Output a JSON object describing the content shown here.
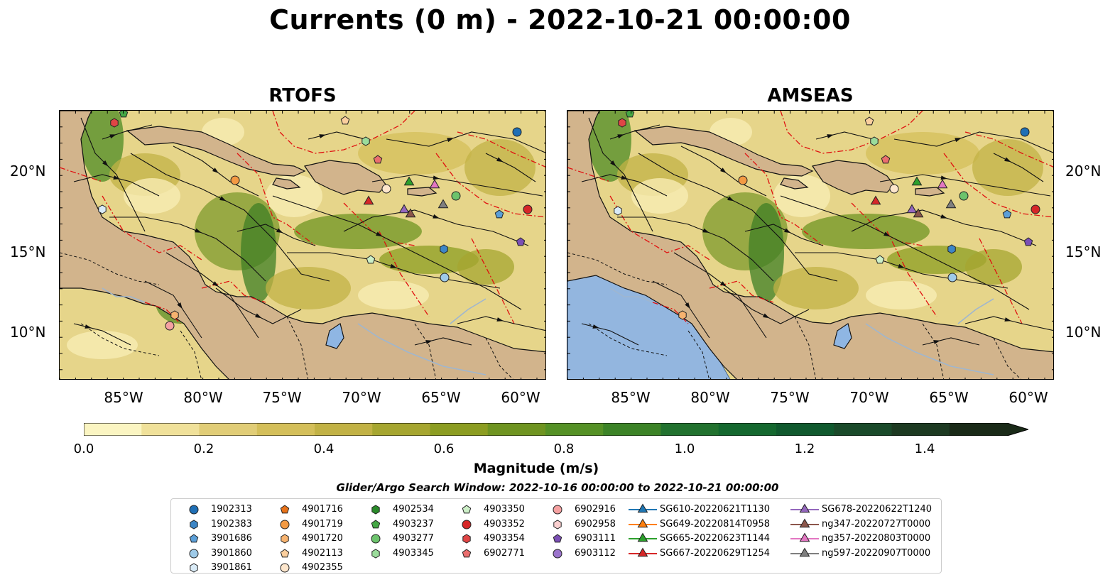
{
  "title": "Currents (0 m) - 2022-10-21 00:00:00",
  "panels": [
    {
      "title": "RTOFS"
    },
    {
      "title": "AMSEAS"
    }
  ],
  "lat_labels": [
    "20°N",
    "15°N",
    "10°N"
  ],
  "lon_labels": [
    "85°W",
    "80°W",
    "75°W",
    "70°W",
    "65°W",
    "60°W"
  ],
  "colorbar": {
    "label": "Magnitude (m/s)",
    "ticks": [
      "0.0",
      "0.2",
      "0.4",
      "0.6",
      "0.8",
      "1.0",
      "1.2",
      "1.4"
    ],
    "colors": [
      "#fbf5c2",
      "#f0e19a",
      "#e1cd77",
      "#d4bf5a",
      "#c2b245",
      "#a6a630",
      "#8c9d22",
      "#6f9421",
      "#559126",
      "#3c8327",
      "#22722f",
      "#14682f",
      "#10592e",
      "#1a4a2a",
      "#1d3a22",
      "#1a2a18"
    ]
  },
  "search_window": "Glider/Argo Search Window: 2022-10-16 00:00:00 to 2022-10-21 00:00:00",
  "legend": [
    {
      "label": "1902313",
      "shape": "circle",
      "color": "#1f6fb5"
    },
    {
      "label": "1902383",
      "shape": "hexagon",
      "color": "#3d86c6"
    },
    {
      "label": "3901686",
      "shape": "pentagon",
      "color": "#5b9fd8"
    },
    {
      "label": "3901860",
      "shape": "circle",
      "color": "#9ecae8"
    },
    {
      "label": "3901861",
      "shape": "hexagon",
      "color": "#d9ebf7"
    },
    {
      "label": "4901716",
      "shape": "pentagon",
      "color": "#e8731a"
    },
    {
      "label": "4901719",
      "shape": "circle",
      "color": "#f39a43"
    },
    {
      "label": "4901720",
      "shape": "hexagon",
      "color": "#f7b36f"
    },
    {
      "label": "4902113",
      "shape": "pentagon",
      "color": "#fbcf9e"
    },
    {
      "label": "4902355",
      "shape": "circle",
      "color": "#fde6cc"
    },
    {
      "label": "4902534",
      "shape": "hexagon",
      "color": "#2a8a2a"
    },
    {
      "label": "4903237",
      "shape": "pentagon",
      "color": "#45a845"
    },
    {
      "label": "4903277",
      "shape": "circle",
      "color": "#6cc36c"
    },
    {
      "label": "4903345",
      "shape": "hexagon",
      "color": "#9bdc9b"
    },
    {
      "label": "4903350",
      "shape": "pentagon",
      "color": "#cdf0c8"
    },
    {
      "label": "4903352",
      "shape": "circle",
      "color": "#d62728"
    },
    {
      "label": "4903354",
      "shape": "hexagon",
      "color": "#e04545"
    },
    {
      "label": "6902771",
      "shape": "pentagon",
      "color": "#ea6e6e"
    },
    {
      "label": "6902916",
      "shape": "circle",
      "color": "#f5a1a1"
    },
    {
      "label": "6902958",
      "shape": "hexagon",
      "color": "#fbd0d0"
    },
    {
      "label": "6903111",
      "shape": "pentagon",
      "color": "#7b4fb5"
    },
    {
      "label": "6903112",
      "shape": "circle",
      "color": "#9b74cc"
    },
    {
      "label": "SG610-20220621T1130",
      "shape": "triangle",
      "color": "#1f77b4"
    },
    {
      "label": "SG649-20220814T0958",
      "shape": "triangle",
      "color": "#ff7f0e"
    },
    {
      "label": "SG665-20220623T1144",
      "shape": "triangle",
      "color": "#2ca02c"
    },
    {
      "label": "SG667-20220629T1254",
      "shape": "triangle",
      "color": "#d62728"
    },
    {
      "label": "SG678-20220622T1240",
      "shape": "triangle",
      "color": "#9467bd"
    },
    {
      "label": "ng347-20220727T0000",
      "shape": "triangle",
      "color": "#8c564b"
    },
    {
      "label": "ng357-20220803T0000",
      "shape": "triangle",
      "color": "#e377c2"
    },
    {
      "label": "ng597-20220907T0000",
      "shape": "triangle",
      "color": "#7f7f7f"
    }
  ]
}
